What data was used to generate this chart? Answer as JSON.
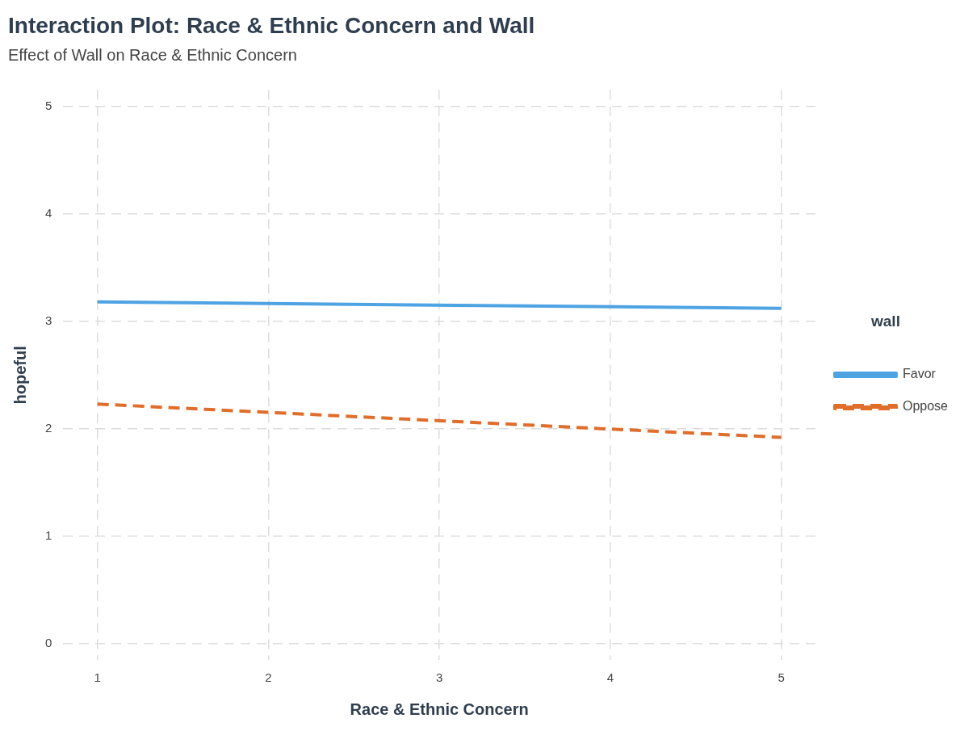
{
  "chart_data": {
    "type": "line",
    "title": "Interaction Plot: Race & Ethnic Concern and Wall",
    "subtitle": "Effect of Wall on Race & Ethnic Concern",
    "xlabel": "Race & Ethnic Concern",
    "ylabel": "hopeful",
    "legend_title": "wall",
    "x": [
      1,
      5
    ],
    "series": [
      {
        "name": "Favor",
        "color": "#4ea3e3",
        "values": [
          3.18,
          3.12
        ],
        "line_style": "solid"
      },
      {
        "name": "Oppose",
        "color": "#e06d2a",
        "values": [
          2.23,
          1.92
        ],
        "line_style": "dashed"
      }
    ],
    "xlim": [
      0.8,
      5.2
    ],
    "xticks": [
      1,
      2,
      3,
      4,
      5
    ],
    "ylim": [
      -0.15,
      5.15
    ],
    "yticks": [
      0,
      1,
      2,
      3,
      4,
      5
    ],
    "grid": true,
    "legend": "right",
    "marker": "none"
  }
}
